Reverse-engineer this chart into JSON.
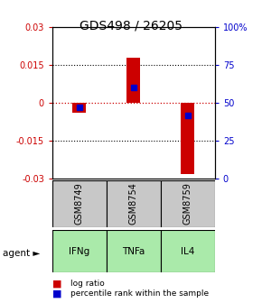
{
  "title": "GDS498 / 26205",
  "samples": [
    "GSM8749",
    "GSM8754",
    "GSM8759"
  ],
  "agents": [
    "IFNg",
    "TNFa",
    "IL4"
  ],
  "log_ratios": [
    -0.004,
    0.018,
    -0.028
  ],
  "percentile_ranks": [
    0.47,
    0.6,
    0.42
  ],
  "ylim_left": [
    -0.03,
    0.03
  ],
  "ylim_right": [
    0,
    1
  ],
  "yticks_left": [
    -0.03,
    -0.015,
    0,
    0.015,
    0.03
  ],
  "ytick_labels_left": [
    "-0.03",
    "-0.015",
    "0",
    "0.015",
    "0.03"
  ],
  "yticks_right": [
    0,
    0.25,
    0.5,
    0.75,
    1.0
  ],
  "ytick_labels_right": [
    "0",
    "25",
    "50",
    "75",
    "100%"
  ],
  "bar_color": "#cc0000",
  "blue_color": "#0000cc",
  "gray_box_color": "#c8c8c8",
  "green_box_color": "#aaeaaa",
  "left_axis_color": "#cc0000",
  "right_axis_color": "#0000cc",
  "bar_width": 0.25,
  "title_fontsize": 10,
  "tick_fontsize": 7,
  "label_fontsize": 7.5,
  "sample_fontsize": 7,
  "legend_fontsize": 6.5,
  "agent_label": "agent ►"
}
